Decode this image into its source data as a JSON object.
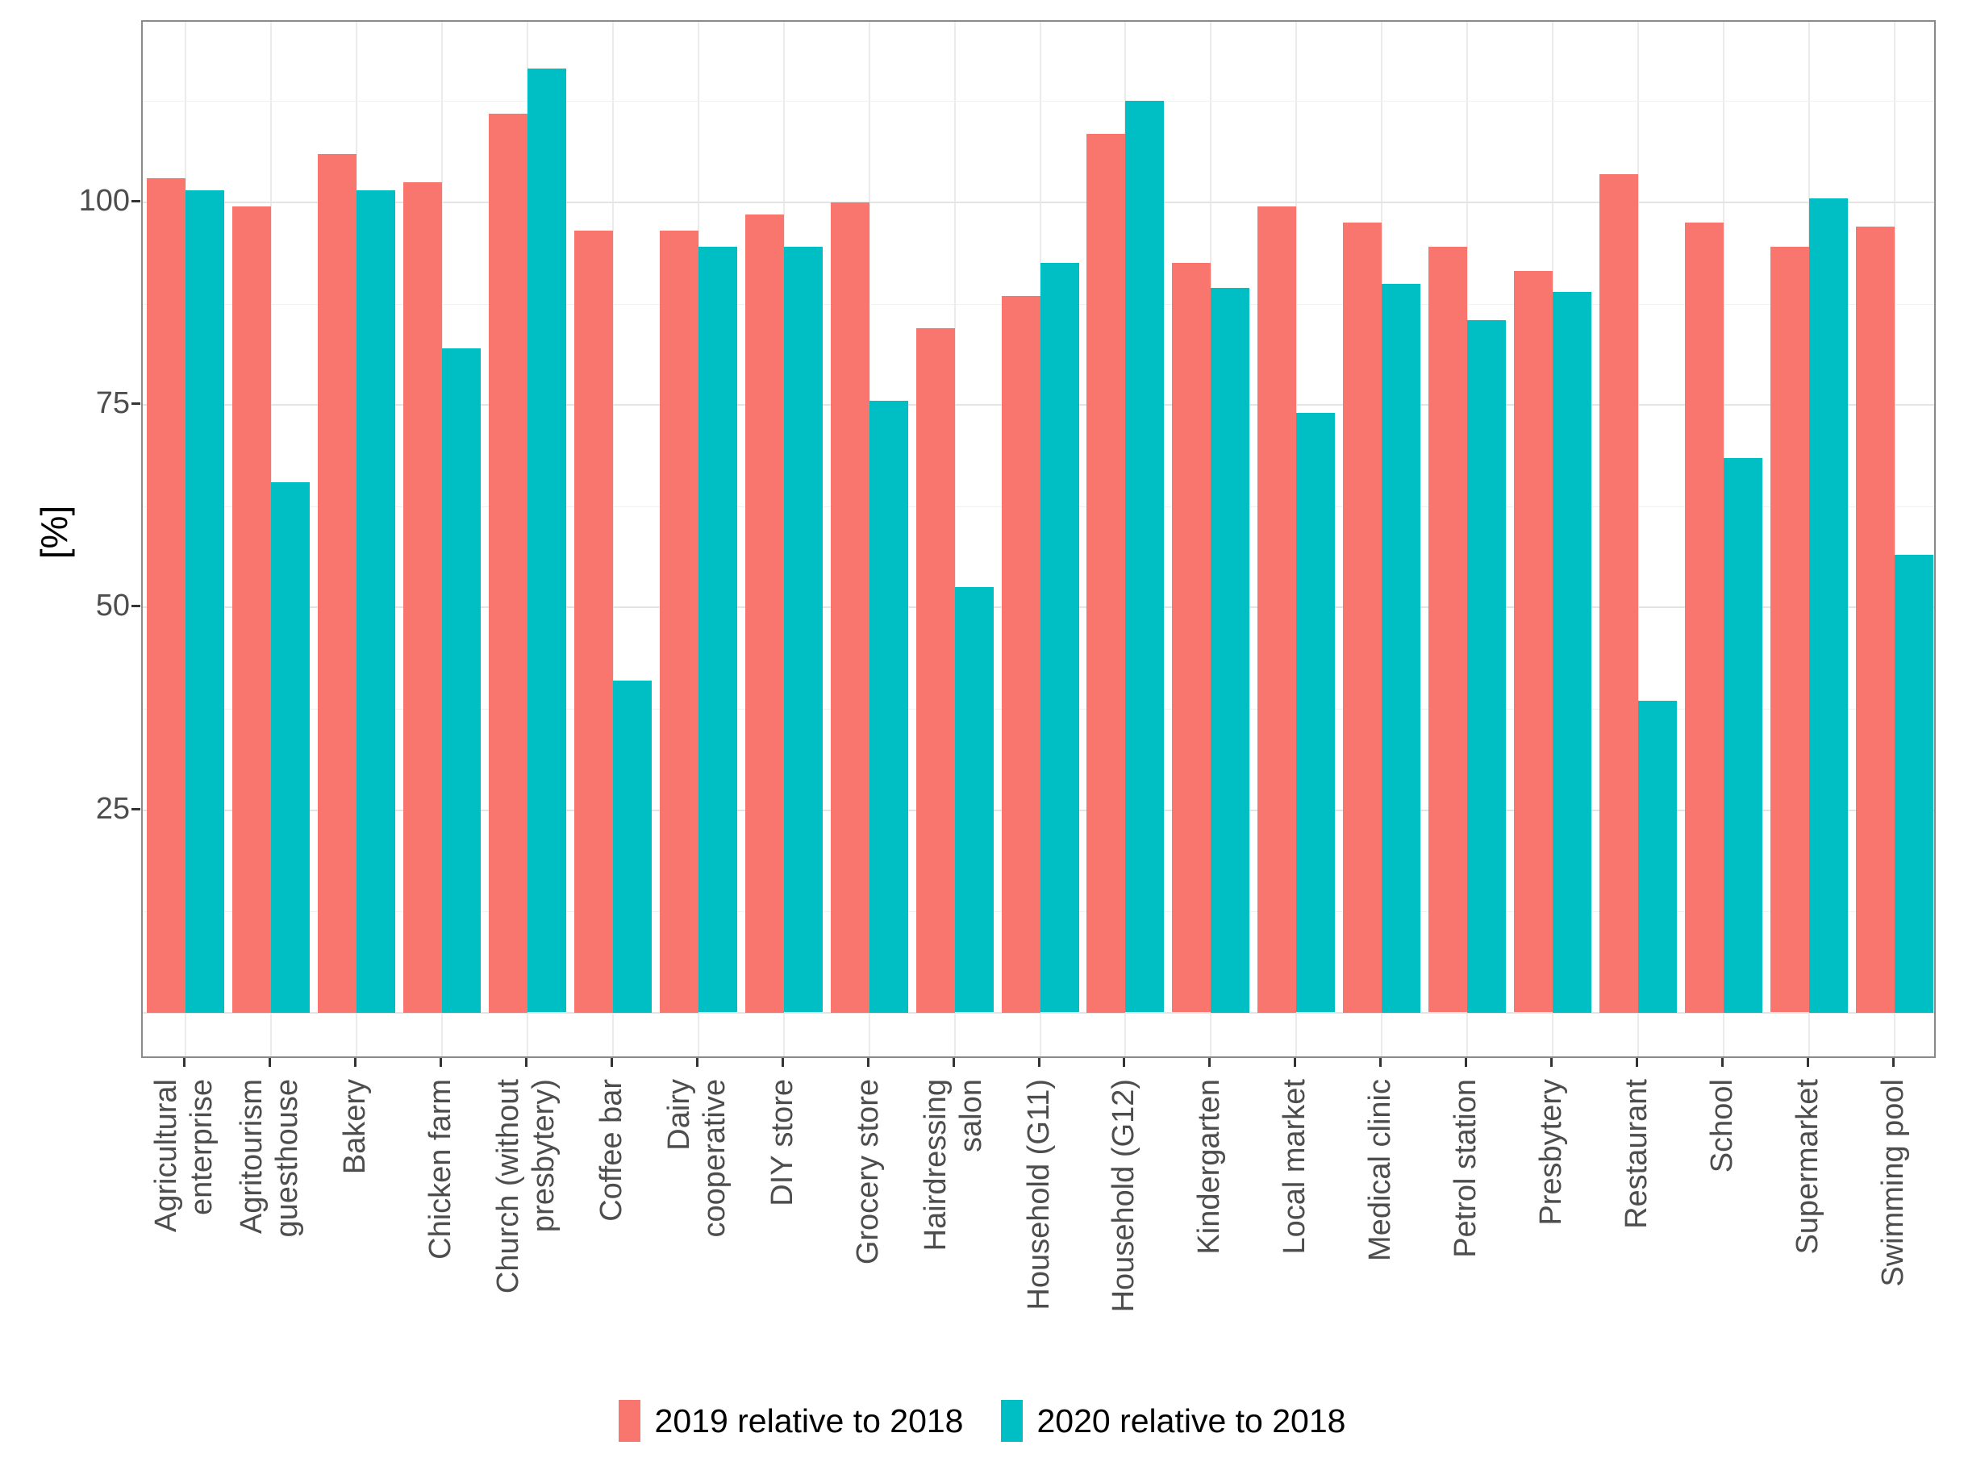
{
  "chart_data": {
    "type": "bar",
    "grouped": true,
    "title": "",
    "xlabel": "",
    "ylabel": "[%]",
    "yticks": [
      25,
      50,
      75,
      100
    ],
    "ylim": [
      0,
      116.5
    ],
    "panel_value_range": [
      -5.8,
      122.3
    ],
    "grid": "on",
    "legend_position": "bottom",
    "categories": [
      "Agricultural enterprise",
      "Agritourism guesthouse",
      "Bakery",
      "Chicken farm",
      "Church (without presbytery)",
      "Coffee bar",
      "Dairy cooperative",
      "DIY store",
      "Grocery store",
      "Hairdressing salon",
      "Household (G11)",
      "Household (G12)",
      "Kindergarten",
      "Local market",
      "Medical clinic",
      "Petrol station",
      "Presbytery",
      "Restaurant",
      "School",
      "Supermarket",
      "Swimming pool"
    ],
    "categories_lines": [
      [
        "Agricultural",
        "enterprise"
      ],
      [
        "Agritourism",
        "guesthouse"
      ],
      [
        "Bakery"
      ],
      [
        "Chicken farm"
      ],
      [
        "Church (without",
        "presbytery)"
      ],
      [
        "Coffee bar"
      ],
      [
        "Dairy",
        "cooperative"
      ],
      [
        "DIY store"
      ],
      [
        "Grocery store"
      ],
      [
        "Hairdressing",
        "salon"
      ],
      [
        "Household (G11)"
      ],
      [
        "Household (G12)"
      ],
      [
        "Kindergarten"
      ],
      [
        "Local market"
      ],
      [
        "Medical clinic"
      ],
      [
        "Petrol station"
      ],
      [
        "Presbytery"
      ],
      [
        "Restaurant"
      ],
      [
        "School"
      ],
      [
        "Supermarket"
      ],
      [
        "Swimming pool"
      ]
    ],
    "series": [
      {
        "name": "2019 relative to 2018",
        "color": "#F8766D",
        "values": [
          103,
          99.5,
          106,
          102.5,
          111,
          96.5,
          96.5,
          98.5,
          100,
          84.5,
          88.5,
          108.5,
          92.5,
          99.5,
          97.5,
          94.5,
          91.5,
          103.5,
          97.5,
          94.5,
          97
        ]
      },
      {
        "name": "2020 relative to 2018",
        "color": "#00BFC4",
        "values": [
          101.5,
          65.5,
          101.5,
          82,
          116.5,
          41,
          94.5,
          94.5,
          75.5,
          52.5,
          92.5,
          112.5,
          89.5,
          74,
          90,
          85.5,
          89,
          38.5,
          68.5,
          100.5,
          56.5
        ]
      }
    ]
  }
}
